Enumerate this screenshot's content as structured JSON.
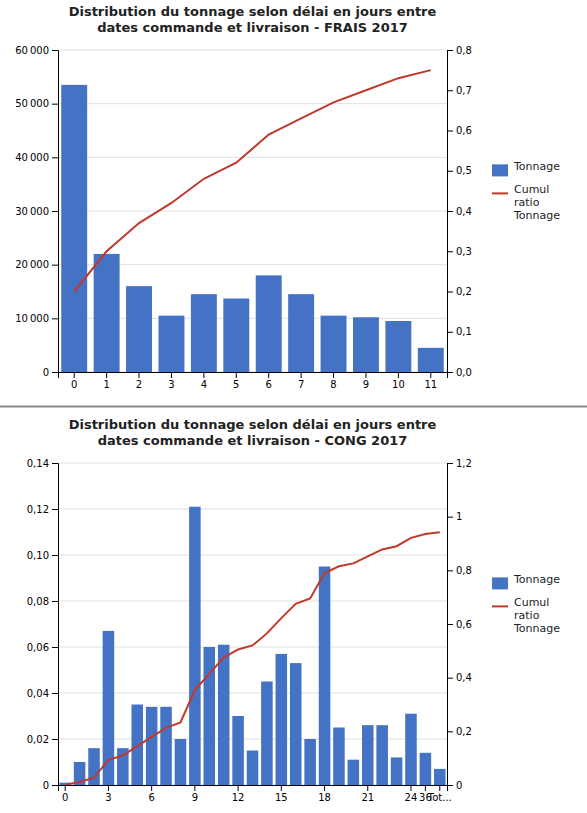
{
  "chart_data": [
    {
      "type": "bar",
      "title": "Distribution du tonnage selon délai en jours entre\ndates commande et livraison - FRAIS 2017",
      "categories": [
        "0",
        "1",
        "2",
        "3",
        "4",
        "5",
        "6",
        "7",
        "8",
        "9",
        "10",
        "11"
      ],
      "series": [
        {
          "name": "Tonnage",
          "type": "bar",
          "color": "#4472C4",
          "values": [
            53500,
            22000,
            16000,
            10500,
            14500,
            13700,
            18000,
            14500,
            10500,
            10200,
            9500,
            4500
          ]
        },
        {
          "name": "Cumul\nratio\nTonnage",
          "type": "line",
          "axis": "y2",
          "color": "#C0392B",
          "values": [
            0.2,
            0.3,
            0.37,
            0.42,
            0.48,
            0.52,
            0.59,
            0.63,
            0.67,
            0.7,
            0.73,
            0.75
          ]
        }
      ],
      "ylim": [
        0,
        60000
      ],
      "yticks": [
        0,
        {
          "value": 10000,
          "label": "10 000"
        },
        {
          "value": 20000,
          "label": "20 000"
        },
        {
          "value": 30000,
          "label": "30 000"
        },
        {
          "value": 40000,
          "label": "40 000"
        },
        {
          "value": 50000,
          "label": "50 000"
        },
        {
          "value": 60000,
          "label": "60 000"
        }
      ],
      "y2lim": [
        0,
        0.8
      ],
      "y2ticks": [
        {
          "value": 0,
          "label": "0,0"
        },
        {
          "value": 0.1,
          "label": "0,1"
        },
        {
          "value": 0.2,
          "label": "0,2"
        },
        {
          "value": 0.3,
          "label": "0,3"
        },
        {
          "value": 0.4,
          "label": "0,4"
        },
        {
          "value": 0.5,
          "label": "0,5"
        },
        {
          "value": 0.6,
          "label": "0,6"
        },
        {
          "value": 0.7,
          "label": "0,7"
        },
        {
          "value": 0.8,
          "label": "0,8"
        }
      ],
      "grid": true,
      "legend": "right"
    },
    {
      "type": "bar",
      "title": "Distribution du tonnage selon délai en jours entre\ndates commande et livraison - CONG 2017",
      "categories": [
        "0",
        null,
        null,
        "3",
        null,
        null,
        "6",
        null,
        null,
        "9",
        null,
        null,
        "12",
        null,
        null,
        "15",
        null,
        null,
        "18",
        null,
        null,
        "21",
        null,
        null,
        "24",
        "36",
        "Tot..."
      ],
      "series": [
        {
          "name": "Tonnage",
          "type": "bar",
          "color": "#4472C4",
          "values": [
            0.001,
            0.01,
            0.016,
            0.067,
            0.016,
            0.035,
            0.034,
            0.034,
            0.02,
            0.121,
            0.06,
            0.061,
            0.03,
            0.015,
            0.045,
            0.057,
            0.053,
            0.02,
            0.095,
            0.025,
            0.011,
            0.026,
            0.026,
            0.012,
            0.031,
            0.014,
            0.007
          ]
        },
        {
          "name": "Cumul\nratio\nTonnage",
          "type": "line",
          "axis": "y2",
          "color": "#C0392B",
          "values": [
            0.001,
            0.011,
            0.027,
            0.094,
            0.11,
            0.145,
            0.179,
            0.213,
            0.233,
            0.354,
            0.414,
            0.475,
            0.505,
            0.52,
            0.565,
            0.622,
            0.675,
            0.695,
            0.79,
            0.815,
            0.826,
            0.852,
            0.878,
            0.89,
            0.921,
            0.935,
            0.942
          ]
        }
      ],
      "ylim": [
        0,
        0.14
      ],
      "yticks": [
        0,
        {
          "value": 0.02,
          "label": "0,02"
        },
        {
          "value": 0.04,
          "label": "0,04"
        },
        {
          "value": 0.06,
          "label": "0,06"
        },
        {
          "value": 0.08,
          "label": "0,08"
        },
        {
          "value": 0.1,
          "label": "0,10"
        },
        {
          "value": 0.12,
          "label": "0,12"
        },
        {
          "value": 0.14,
          "label": "0,14"
        }
      ],
      "y2lim": [
        0,
        1.2
      ],
      "y2ticks": [
        0,
        {
          "value": 0.2,
          "label": "0,2"
        },
        {
          "value": 0.4,
          "label": "0,4"
        },
        {
          "value": 0.6,
          "label": "0,6"
        },
        {
          "value": 0.8,
          "label": "0,8"
        },
        1,
        {
          "value": 1.2,
          "label": "1,2"
        }
      ],
      "grid": true,
      "legend": "right"
    }
  ]
}
